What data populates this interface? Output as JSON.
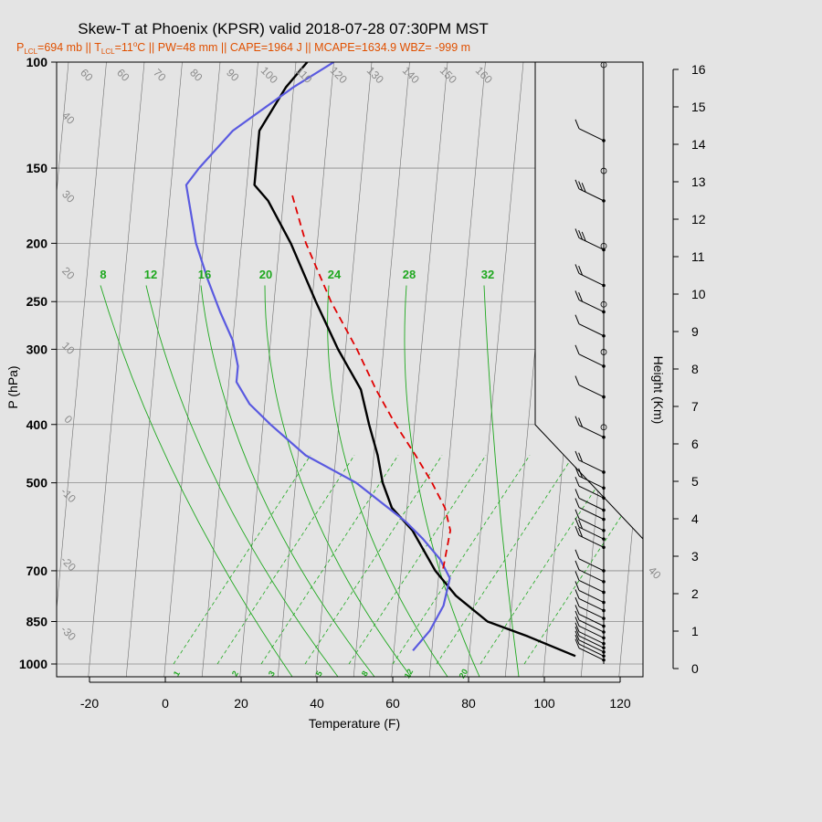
{
  "title": "Skew-T at Phoenix (KPSR) valid 2018-07-28 07:30PM MST",
  "subtitle": {
    "p_lcl_label": "P",
    "p_lcl_sub": "LCL",
    "p_lcl_value": "=694 mb || T",
    "t_lcl_sub": "LCL",
    "t_lcl_value": "=11",
    "t_lcl_deg": "o",
    "rest": "C || PW=48 mm || CAPE=1964 J || MCAPE=1634.9 WBZ= -999 m"
  },
  "colors": {
    "background": "#e4e4e4",
    "temperature": "#000000",
    "dewpoint": "#5a5ae0",
    "parcel": "#e00000",
    "mixing_ratio": "#1fa81f",
    "isotherm": "#8a8a8a",
    "subtitle": "#e05000"
  },
  "chart_data": {
    "type": "line",
    "xlabel": "Temperature (F)",
    "ylabel": "P (hPa)",
    "y2label": "Height (Km)",
    "xlim": [
      -28,
      125
    ],
    "ylim": [
      1050,
      100
    ],
    "y_log": true,
    "grid": true,
    "x_ticks": [
      "-20",
      "0",
      "20",
      "40",
      "60",
      "80",
      "100",
      "120"
    ],
    "y_ticks": [
      {
        "p": 100,
        "label": "100"
      },
      {
        "p": 150,
        "label": "150"
      },
      {
        "p": 200,
        "label": "200"
      },
      {
        "p": 250,
        "label": "250"
      },
      {
        "p": 300,
        "label": "300"
      },
      {
        "p": 400,
        "label": "400"
      },
      {
        "p": 500,
        "label": "500"
      },
      {
        "p": 700,
        "label": "700"
      },
      {
        "p": 850,
        "label": "850"
      },
      {
        "p": 1000,
        "label": "1000"
      }
    ],
    "height_ticks": [
      "0",
      "1",
      "2",
      "3",
      "4",
      "5",
      "6",
      "7",
      "8",
      "9",
      "10",
      "11",
      "12",
      "13",
      "14",
      "15",
      "16"
    ],
    "isotherm_labels": [
      "60",
      "60",
      "70",
      "80",
      "90",
      "100",
      "110",
      "120",
      "130",
      "140",
      "150",
      "160",
      "30",
      "20",
      "10",
      "0",
      "10",
      "20",
      "30",
      "40",
      "40",
      "30",
      "20",
      "10",
      "0",
      "-10",
      "-20",
      "-30"
    ],
    "mixing_ratio_top_labels": [
      "8",
      "12",
      "16",
      "20",
      "24",
      "28",
      "32"
    ],
    "mixing_ratio_bottom_labels": [
      "1",
      "2",
      "3",
      "5",
      "8",
      "12",
      "20"
    ],
    "series": [
      {
        "key": "temperature",
        "points": [
          [
            108,
            970
          ],
          [
            95,
            900
          ],
          [
            84,
            850
          ],
          [
            75,
            770
          ],
          [
            69,
            700
          ],
          [
            62,
            600
          ],
          [
            56,
            550
          ],
          [
            53,
            500
          ],
          [
            51,
            450
          ],
          [
            48,
            400
          ],
          [
            45,
            350
          ],
          [
            38,
            300
          ],
          [
            31,
            250
          ],
          [
            23,
            200
          ],
          [
            16,
            170
          ],
          [
            12,
            160
          ],
          [
            12,
            130
          ],
          [
            18,
            110
          ],
          [
            23,
            100
          ]
        ]
      },
      {
        "key": "dewpoint",
        "points": [
          [
            65,
            950
          ],
          [
            69,
            880
          ],
          [
            72,
            800
          ],
          [
            73,
            720
          ],
          [
            70,
            670
          ],
          [
            65,
            620
          ],
          [
            60,
            580
          ],
          [
            55,
            550
          ],
          [
            46,
            500
          ],
          [
            32,
            450
          ],
          [
            22,
            400
          ],
          [
            16,
            370
          ],
          [
            12,
            340
          ],
          [
            12,
            320
          ],
          [
            10,
            290
          ],
          [
            6,
            260
          ],
          [
            2,
            230
          ],
          [
            -2,
            200
          ],
          [
            -6,
            160
          ],
          [
            -3,
            150
          ],
          [
            5,
            130
          ],
          [
            20,
            110
          ],
          [
            30,
            100
          ]
        ]
      },
      {
        "key": "parcel",
        "points": [
          [
            71,
            694
          ],
          [
            72,
            600
          ],
          [
            70,
            550
          ],
          [
            66,
            500
          ],
          [
            61,
            450
          ],
          [
            55,
            400
          ],
          [
            49,
            350
          ],
          [
            43,
            300
          ],
          [
            35,
            250
          ],
          [
            27,
            200
          ],
          [
            22,
            165
          ]
        ]
      }
    ]
  },
  "wind_barbs": [
    {
      "p": 985,
      "barbs": 1
    },
    {
      "p": 970,
      "barbs": 1
    },
    {
      "p": 955,
      "barbs": 1
    },
    {
      "p": 940,
      "barbs": 1
    },
    {
      "p": 925,
      "barbs": 1
    },
    {
      "p": 905,
      "barbs": 1
    },
    {
      "p": 885,
      "barbs": 1
    },
    {
      "p": 865,
      "barbs": 1
    },
    {
      "p": 840,
      "barbs": 1
    },
    {
      "p": 815,
      "barbs": 1
    },
    {
      "p": 790,
      "barbs": 1
    },
    {
      "p": 760,
      "barbs": 1
    },
    {
      "p": 730,
      "barbs": 1
    },
    {
      "p": 700,
      "barbs": 1
    },
    {
      "p": 640,
      "barbs": 2
    },
    {
      "p": 620,
      "barbs": 2
    },
    {
      "p": 600,
      "barbs": 1
    },
    {
      "p": 575,
      "barbs": 1
    },
    {
      "p": 555,
      "barbs": 1
    },
    {
      "p": 530,
      "barbs": 1
    },
    {
      "p": 510,
      "barbs": 2
    },
    {
      "p": 480,
      "barbs": 2
    },
    {
      "p": 420,
      "barbs": 2
    },
    {
      "p": 360,
      "barbs": 1
    },
    {
      "p": 320,
      "barbs": 1
    },
    {
      "p": 285,
      "barbs": 1
    },
    {
      "p": 260,
      "barbs": 2
    },
    {
      "p": 235,
      "barbs": 2
    },
    {
      "p": 205,
      "barbs": 3
    },
    {
      "p": 170,
      "barbs": 3
    },
    {
      "p": 135,
      "barbs": 1
    }
  ]
}
